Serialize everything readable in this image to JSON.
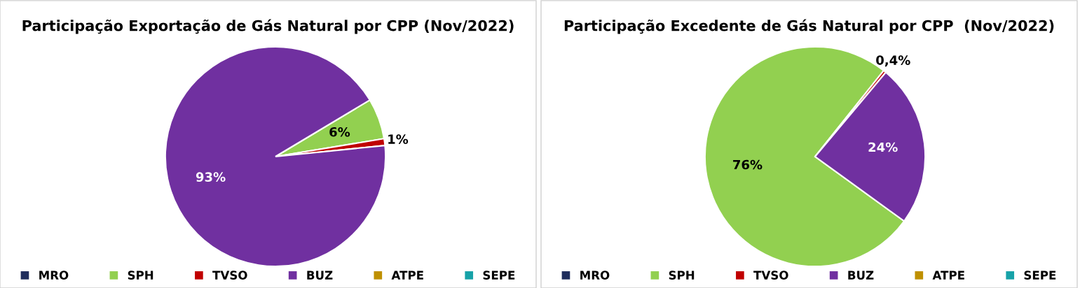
{
  "chart_data": [
    {
      "type": "pie",
      "title": "Participação Exportação de Gás Natural por CPP (Nov/2022)",
      "categories": [
        "MRO",
        "SPH",
        "TVSO",
        "BUZ",
        "ATPE",
        "SEPE"
      ],
      "values": [
        0,
        6,
        1,
        93,
        0,
        0
      ],
      "colors": [
        "#1f2d5c",
        "#92d050",
        "#c00000",
        "#7030a0",
        "#bf9000",
        "#17a2a8"
      ],
      "value_labels": [
        null,
        "6%",
        "1%",
        "93%",
        null,
        null
      ],
      "legend": "bottom"
    },
    {
      "type": "pie",
      "title": "Participação Excedente de Gás Natural por CPP  (Nov/2022)",
      "categories": [
        "MRO",
        "SPH",
        "TVSO",
        "BUZ",
        "ATPE",
        "SEPE"
      ],
      "values": [
        0,
        76,
        0.4,
        24,
        0,
        0
      ],
      "colors": [
        "#1f2d5c",
        "#92d050",
        "#c00000",
        "#7030a0",
        "#bf9000",
        "#17a2a8"
      ],
      "value_labels": [
        null,
        "76%",
        "0,4%",
        "24%",
        null,
        null
      ],
      "legend": "bottom"
    }
  ]
}
